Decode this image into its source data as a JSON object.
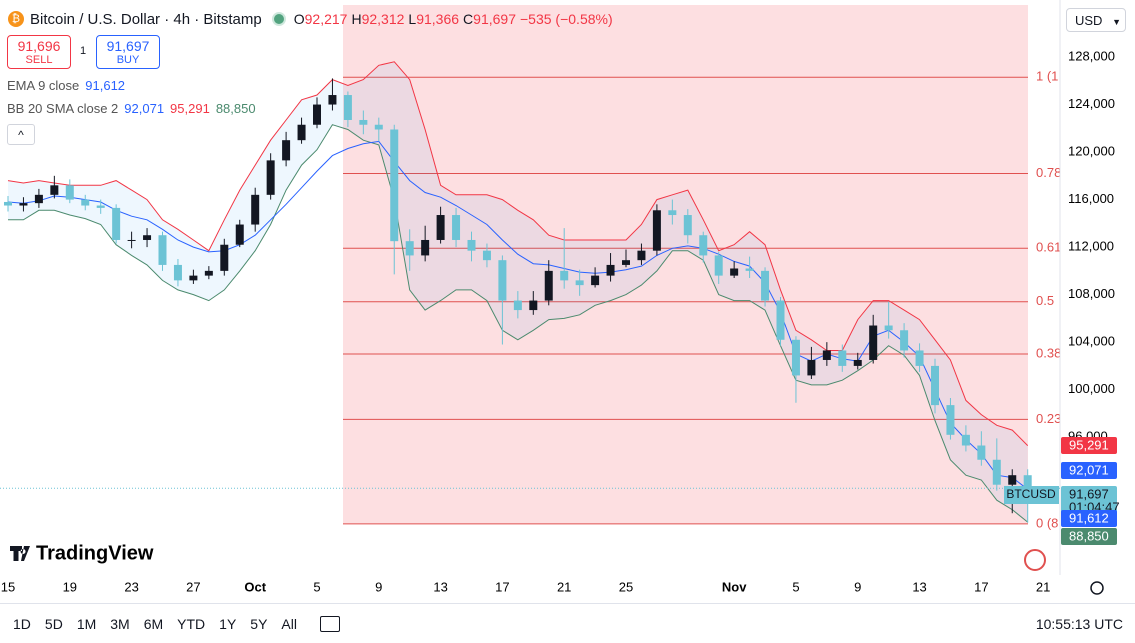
{
  "header": {
    "symbol": "Bitcoin / U.S. Dollar · 4h · Bitstamp",
    "ohlc": [
      {
        "key": "O",
        "value": "92,217"
      },
      {
        "key": "H",
        "value": "92,312"
      },
      {
        "key": "L",
        "value": "91,366"
      },
      {
        "key": "C",
        "value": "91,697"
      }
    ],
    "change": "−535 (−0.58%)"
  },
  "trade": {
    "sell_price": "91,696",
    "sell": "SELL",
    "quantity": "1",
    "buy_price": "91,697",
    "buy": "BUY"
  },
  "currency": "USD",
  "brand": "TradingView",
  "ranges": [
    "1D",
    "5D",
    "1M",
    "3M",
    "6M",
    "YTD",
    "1Y",
    "5Y",
    "All"
  ],
  "clock": "10:55:13 UTC",
  "chart_data": {
    "type": "candlestick",
    "categories": [
      "15",
      null,
      null,
      null,
      "19",
      null,
      null,
      null,
      "23",
      null,
      null,
      null,
      "27",
      null,
      null,
      null,
      "Oct",
      null,
      null,
      null,
      "5",
      null,
      null,
      null,
      "9",
      null,
      null,
      null,
      "13",
      null,
      null,
      null,
      "17",
      null,
      null,
      null,
      "21",
      null,
      null,
      null,
      "25",
      null,
      null,
      null,
      null,
      null,
      null,
      "Nov",
      null,
      null,
      null,
      "5",
      null,
      null,
      null,
      "9",
      null,
      null,
      null,
      "13",
      null,
      null,
      null,
      "17",
      null,
      null,
      null,
      "21"
    ],
    "open": [
      115800,
      115500,
      115700,
      116400,
      117200,
      116000,
      115500,
      115300,
      112600,
      112600,
      113000,
      110500,
      109200,
      109600,
      110000,
      112200,
      113900,
      116400,
      119300,
      121000,
      122300,
      124000,
      124800,
      122700,
      122300,
      121900,
      112500,
      111300,
      112600,
      114700,
      112600,
      111700,
      110900,
      107500,
      106700,
      107500,
      110000,
      109200,
      108800,
      109600,
      110500,
      110900,
      111700,
      115100,
      114700,
      113000,
      111300,
      109600,
      110200,
      110000,
      107500,
      104200,
      101200,
      102500,
      103300,
      102000,
      102500,
      105400,
      105000,
      103300,
      102000,
      98700,
      96200,
      95300,
      94100,
      92000,
      92800,
      null
    ],
    "high": [
      116300,
      116200,
      116900,
      118000,
      117700,
      116400,
      116000,
      115600,
      113300,
      113600,
      113300,
      111000,
      110100,
      110400,
      112700,
      114300,
      117000,
      119900,
      121700,
      122900,
      124600,
      126200,
      125100,
      123500,
      122900,
      122300,
      113500,
      113800,
      115400,
      115300,
      113300,
      112300,
      111300,
      108300,
      108300,
      110900,
      113600,
      110100,
      110300,
      111500,
      111800,
      112300,
      115600,
      116000,
      115200,
      113300,
      111600,
      110800,
      111200,
      110300,
      107800,
      104500,
      103600,
      104000,
      103800,
      103100,
      106300,
      107400,
      105600,
      103900,
      102600,
      99300,
      97000,
      96500,
      95900,
      93300,
      93300,
      null
    ],
    "low": [
      115000,
      115000,
      115300,
      116100,
      115700,
      115100,
      114800,
      112300,
      111900,
      112000,
      110000,
      108700,
      108900,
      109300,
      109600,
      112000,
      113300,
      116000,
      118800,
      120700,
      122000,
      123500,
      122100,
      121500,
      120900,
      109700,
      110000,
      110800,
      112300,
      112000,
      110800,
      110300,
      103800,
      106000,
      106300,
      107100,
      108500,
      107900,
      108600,
      109100,
      110300,
      110500,
      111300,
      113900,
      112300,
      110700,
      108900,
      109400,
      109400,
      107000,
      103700,
      98900,
      100900,
      102000,
      101500,
      101700,
      102200,
      104300,
      102700,
      101500,
      98000,
      95800,
      94800,
      93600,
      91500,
      89600,
      88800,
      null
    ],
    "close": [
      115500,
      115700,
      116400,
      117200,
      116000,
      115500,
      115300,
      112600,
      112600,
      113000,
      110500,
      109200,
      109600,
      110000,
      112200,
      113900,
      116400,
      119300,
      121000,
      122300,
      124000,
      124800,
      122700,
      122300,
      121900,
      112500,
      111300,
      112600,
      114700,
      112600,
      111700,
      110900,
      107500,
      106700,
      107500,
      110000,
      109200,
      108800,
      109600,
      110500,
      110900,
      111700,
      115100,
      114700,
      113000,
      111300,
      109600,
      110200,
      110000,
      107500,
      104200,
      101200,
      102500,
      103300,
      102000,
      102500,
      105400,
      105000,
      103300,
      102000,
      98700,
      96200,
      95300,
      94100,
      92000,
      92800,
      91697,
      null
    ],
    "up_color": "#131722",
    "down_color": "#6cc3d5",
    "series": [
      {
        "name": "EMA 9 close",
        "color": "#2962ff",
        "legend_values": [
          "91,612"
        ],
        "values": [
          115800,
          115700,
          115900,
          116300,
          116200,
          116000,
          115800,
          115100,
          114600,
          114300,
          113500,
          112600,
          112000,
          111600,
          111700,
          112200,
          113000,
          114300,
          115600,
          117000,
          118400,
          119700,
          120300,
          120700,
          120900,
          119200,
          117600,
          116600,
          116200,
          115500,
          114700,
          113900,
          112600,
          111400,
          110600,
          110500,
          110200,
          109900,
          109800,
          109900,
          110100,
          110400,
          111300,
          111900,
          112100,
          111900,
          111400,
          110800,
          110400,
          109000,
          106500,
          103000,
          102400,
          103000,
          102600,
          102400,
          104500,
          105000,
          104000,
          102800,
          100000,
          97200,
          95800,
          94600,
          92800,
          92600,
          91612,
          null
        ]
      },
      {
        "name": "BB 20 SMA close 2",
        "color": "#f23645",
        "lower_color": "#4b8a6e",
        "legend_values": [
          "92,071",
          "95,291",
          "88,850"
        ],
        "upper": [
          117600,
          117400,
          117600,
          117400,
          117200,
          117200,
          117200,
          117600,
          116800,
          116000,
          114300,
          113500,
          112600,
          111700,
          114300,
          116800,
          118900,
          121000,
          122700,
          124400,
          124800,
          126100,
          125600,
          126100,
          127300,
          127600,
          126100,
          121900,
          117200,
          116400,
          116400,
          116400,
          116000,
          115100,
          114300,
          113000,
          112600,
          112600,
          112600,
          112600,
          112600,
          113900,
          116000,
          116400,
          116800,
          114300,
          111700,
          112200,
          113300,
          112200,
          108400,
          105000,
          104200,
          103300,
          103300,
          105900,
          107500,
          107500,
          106700,
          105900,
          104200,
          102500,
          99100,
          97900,
          97000,
          96600,
          95291,
          null
        ],
        "lower": [
          114300,
          114300,
          115100,
          115100,
          114700,
          114400,
          113900,
          112200,
          111300,
          110500,
          109200,
          108400,
          108000,
          107500,
          108400,
          110000,
          111700,
          113900,
          116800,
          118900,
          120200,
          122300,
          121900,
          121000,
          120600,
          116000,
          108400,
          106700,
          107500,
          108400,
          108400,
          107500,
          105000,
          104200,
          105000,
          105900,
          106000,
          106300,
          107100,
          107500,
          108000,
          108800,
          110000,
          111700,
          111700,
          110900,
          108000,
          107500,
          107500,
          106700,
          103700,
          100800,
          100400,
          100400,
          100800,
          101600,
          102500,
          103700,
          102900,
          101200,
          97400,
          94100,
          92800,
          92400,
          90700,
          89900,
          88850,
          null
        ]
      }
    ],
    "fib_levels": [
      {
        "label": "1 (1",
        "value": 126300
      },
      {
        "label": "0.78",
        "value": 118200
      },
      {
        "label": "0.61",
        "value": 111900
      },
      {
        "label": "0.5",
        "value": 107400
      },
      {
        "label": "0.38",
        "value": 103000
      },
      {
        "label": "0.23",
        "value": 97500
      },
      {
        "label": "0 (8",
        "value": 88700
      }
    ],
    "fib_color": "#e0504f",
    "ylim": [
      84400,
      132800
    ],
    "yticks": [
      {
        "value": 128000,
        "label": "128,000"
      },
      {
        "value": 124000,
        "label": "124,000"
      },
      {
        "value": 120000,
        "label": "120,000"
      },
      {
        "value": 116000,
        "label": "116,000"
      },
      {
        "value": 112000,
        "label": "112,000"
      },
      {
        "value": 108000,
        "label": "108,000"
      },
      {
        "value": 104000,
        "label": "104,000"
      },
      {
        "value": 100000,
        "label": "100,000"
      },
      {
        "value": 96000,
        "label": "96,000"
      }
    ],
    "price_tags": [
      {
        "value": 95291,
        "label": "95,291",
        "color": "#f23645"
      },
      {
        "value": 92071,
        "label": "92,071",
        "color": "#2962ff"
      },
      {
        "value": 91697,
        "label": "91,697",
        "color": "#6cc3d5",
        "name": "BTCUSD",
        "countdown": "01:04:47"
      },
      {
        "value": 91612,
        "label": "91,612",
        "color": "#2962ff"
      },
      {
        "value": 88850,
        "label": "88,850",
        "color": "#4b8a6e"
      }
    ]
  }
}
